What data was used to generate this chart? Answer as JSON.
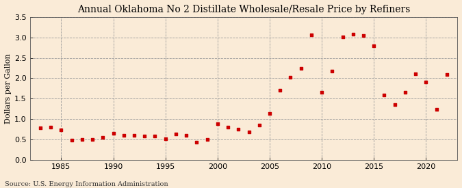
{
  "title": "Annual Oklahoma No 2 Distillate Wholesale/Resale Price by Refiners",
  "ylabel": "Dollars per Gallon",
  "source": "Source: U.S. Energy Information Administration",
  "background_color": "#faebd7",
  "marker_color": "#cc0000",
  "xlim": [
    1982,
    2023
  ],
  "ylim": [
    0.0,
    3.5
  ],
  "yticks": [
    0.0,
    0.5,
    1.0,
    1.5,
    2.0,
    2.5,
    3.0,
    3.5
  ],
  "xticks": [
    1985,
    1990,
    1995,
    2000,
    2005,
    2010,
    2015,
    2020
  ],
  "years": [
    1983,
    1984,
    1985,
    1986,
    1987,
    1988,
    1989,
    1990,
    1991,
    1992,
    1993,
    1994,
    1995,
    1996,
    1997,
    1998,
    1999,
    2000,
    2001,
    2002,
    2003,
    2004,
    2005,
    2006,
    2007,
    2008,
    2009,
    2010,
    2011,
    2012,
    2013,
    2014,
    2015,
    2016,
    2017,
    2018,
    2019,
    2020,
    2021,
    2022
  ],
  "values": [
    0.79,
    0.8,
    0.74,
    0.49,
    0.5,
    0.5,
    0.55,
    0.65,
    0.6,
    0.6,
    0.58,
    0.58,
    0.52,
    0.64,
    0.61,
    0.44,
    0.5,
    0.88,
    0.8,
    0.75,
    0.68,
    0.86,
    1.14,
    1.71,
    2.02,
    2.25,
    3.07,
    1.66,
    2.17,
    3.02,
    3.08,
    3.04,
    2.8,
    1.59,
    1.36,
    1.65,
    2.11,
    1.91,
    1.24,
    2.1
  ]
}
